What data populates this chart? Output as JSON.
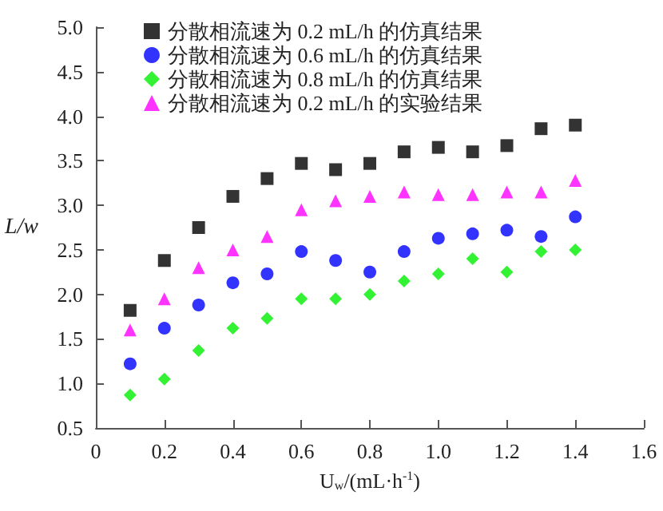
{
  "chart_data": {
    "type": "scatter",
    "xlabel": "U$_{w}$/(mL·h$^{-1}$)",
    "ylabel": "L/w",
    "x": [
      0.1,
      0.2,
      0.3,
      0.4,
      0.5,
      0.6,
      0.7,
      0.8,
      0.9,
      1.0,
      1.1,
      1.2,
      1.3,
      1.4
    ],
    "series": [
      {
        "name": "分散相流速为 0.2 mL/h 的仿真结果",
        "color": "#000000",
        "marker": "square",
        "values": [
          1.82,
          2.38,
          2.75,
          3.1,
          3.3,
          3.47,
          3.4,
          3.47,
          3.6,
          3.65,
          3.6,
          3.67,
          3.86,
          3.9
        ]
      },
      {
        "name": "分散相流速为 0.6 mL/h 的仿真结果",
        "color": "#0000ff",
        "marker": "circle",
        "values": [
          1.22,
          1.62,
          1.88,
          2.13,
          2.23,
          2.48,
          2.38,
          2.25,
          2.48,
          2.63,
          2.68,
          2.72,
          2.65,
          2.87
        ]
      },
      {
        "name": "分散相流速为 0.8 mL/h 的仿真结果",
        "color": "#00ee00",
        "marker": "diamond",
        "values": [
          0.87,
          1.05,
          1.37,
          1.62,
          1.73,
          1.95,
          1.95,
          2.0,
          2.15,
          2.23,
          2.4,
          2.25,
          2.48,
          2.5
        ]
      },
      {
        "name": "分散相流速为 0.2 mL/h 的实验结果",
        "color": "#ff00ff",
        "marker": "triangle",
        "values": [
          1.6,
          1.95,
          2.3,
          2.5,
          2.65,
          2.95,
          3.05,
          3.1,
          3.15,
          3.12,
          3.12,
          3.15,
          3.15,
          3.28
        ]
      }
    ],
    "xlim": [
      0,
      1.6
    ],
    "xticks": [
      0,
      0.2,
      0.4,
      0.6,
      0.8,
      {
        "value": 1,
        "label": "1.0"
      },
      1.2,
      1.4,
      1.6
    ],
    "ylim": [
      0.5,
      5.0
    ],
    "yticks": [
      0.5,
      {
        "value": 1,
        "label": "1.0"
      },
      1.5,
      {
        "value": 2,
        "label": "2.0"
      },
      2.5,
      {
        "value": 3,
        "label": "3.0"
      },
      3.5,
      {
        "value": 4,
        "label": "4.0"
      },
      4.5,
      {
        "value": 5,
        "label": "5.0"
      }
    ],
    "grid": false,
    "legend": "top left"
  }
}
